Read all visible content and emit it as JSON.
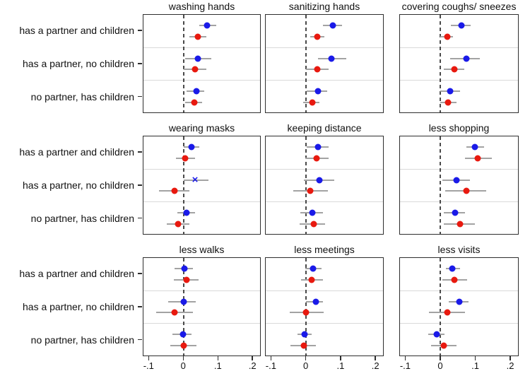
{
  "chart_data": {
    "type": "scatter",
    "layout": "3x3 small-multiple coefficient plot, two series per category with horizontal confidence intervals, dashed reference line at 0, grid off, no legend",
    "categories": [
      "has a partner and children",
      "has a partner, no children",
      "no partner, has children"
    ],
    "x_tick_labels": [
      "-.1",
      "0",
      ".1",
      ".2"
    ],
    "x_tick_values": [
      -0.1,
      0,
      0.1,
      0.2
    ],
    "xlim": [
      -0.117,
      0.224
    ],
    "zero_line": 0,
    "colors": {
      "series_blue": "#1a1ae8",
      "series_red": "#e8190f",
      "whisker": "#a3a3a3",
      "box_border": "#2e2e2e",
      "zero_dash": "#4a4a4a",
      "band_divider": "#d9d9d9"
    },
    "panels": [
      {
        "title": "washing hands",
        "rows": [
          {
            "blue": {
              "est": 0.068,
              "lo": 0.047,
              "hi": 0.095
            },
            "red": {
              "est": 0.042,
              "lo": 0.018,
              "hi": 0.067
            }
          },
          {
            "blue": {
              "est": 0.042,
              "lo": 0.005,
              "hi": 0.081
            },
            "red": {
              "est": 0.033,
              "lo": 0.0,
              "hi": 0.067
            }
          },
          {
            "blue": {
              "est": 0.038,
              "lo": 0.01,
              "hi": 0.061
            },
            "red": {
              "est": 0.032,
              "lo": 0.005,
              "hi": 0.054
            }
          }
        ]
      },
      {
        "title": "sanitizing hands",
        "rows": [
          {
            "blue": {
              "est": 0.078,
              "lo": 0.049,
              "hi": 0.105
            },
            "red": {
              "est": 0.033,
              "lo": 0.012,
              "hi": 0.053
            }
          },
          {
            "blue": {
              "est": 0.075,
              "lo": 0.035,
              "hi": 0.117
            },
            "red": {
              "est": 0.032,
              "lo": 0.0,
              "hi": 0.065
            }
          },
          {
            "blue": {
              "est": 0.035,
              "lo": 0.003,
              "hi": 0.061
            },
            "red": {
              "est": 0.018,
              "lo": -0.009,
              "hi": 0.039
            }
          }
        ]
      },
      {
        "title": "covering coughs/ sneezes",
        "rows": [
          {
            "blue": {
              "est": 0.061,
              "lo": 0.03,
              "hi": 0.088
            },
            "red": {
              "est": 0.019,
              "lo": -0.001,
              "hi": 0.037
            }
          },
          {
            "blue": {
              "est": 0.074,
              "lo": 0.027,
              "hi": 0.113
            },
            "red": {
              "est": 0.04,
              "lo": 0.009,
              "hi": 0.069
            }
          },
          {
            "blue": {
              "est": 0.028,
              "lo": -0.001,
              "hi": 0.057
            },
            "red": {
              "est": 0.022,
              "lo": 0.0,
              "hi": 0.046
            }
          }
        ]
      },
      {
        "title": "wearing masks",
        "rows": [
          {
            "blue": {
              "est": 0.024,
              "lo": 0.001,
              "hi": 0.047
            },
            "red": {
              "est": 0.005,
              "lo": -0.022,
              "hi": 0.034
            }
          },
          {
            "blue": {
              "est": 0.034,
              "lo": 0.001,
              "hi": 0.073,
              "marker": "x"
            },
            "red": {
              "est": -0.027,
              "lo": -0.072,
              "hi": 0.017
            }
          },
          {
            "blue": {
              "est": 0.01,
              "lo": -0.018,
              "hi": 0.034
            },
            "red": {
              "est": -0.016,
              "lo": -0.048,
              "hi": 0.018
            }
          }
        ]
      },
      {
        "title": "keeping distance",
        "rows": [
          {
            "blue": {
              "est": 0.034,
              "lo": 0.003,
              "hi": 0.066
            },
            "red": {
              "est": 0.031,
              "lo": -0.002,
              "hi": 0.066
            }
          },
          {
            "blue": {
              "est": 0.039,
              "lo": -0.007,
              "hi": 0.082
            },
            "red": {
              "est": 0.013,
              "lo": -0.037,
              "hi": 0.063
            }
          },
          {
            "blue": {
              "est": 0.018,
              "lo": -0.017,
              "hi": 0.049
            },
            "red": {
              "est": 0.023,
              "lo": -0.018,
              "hi": 0.055
            }
          }
        ]
      },
      {
        "title": "less shopping",
        "rows": [
          {
            "blue": {
              "est": 0.1,
              "lo": 0.074,
              "hi": 0.126
            },
            "red": {
              "est": 0.108,
              "lo": 0.071,
              "hi": 0.148
            }
          },
          {
            "blue": {
              "est": 0.047,
              "lo": 0.005,
              "hi": 0.086
            },
            "red": {
              "est": 0.074,
              "lo": 0.013,
              "hi": 0.133
            }
          },
          {
            "blue": {
              "est": 0.042,
              "lo": 0.01,
              "hi": 0.071
            },
            "red": {
              "est": 0.056,
              "lo": 0.01,
              "hi": 0.1
            }
          }
        ]
      },
      {
        "title": "less walks",
        "rows": [
          {
            "blue": {
              "est": 0.003,
              "lo": -0.026,
              "hi": 0.027
            },
            "red": {
              "est": 0.01,
              "lo": -0.029,
              "hi": 0.044
            }
          },
          {
            "blue": {
              "est": 0.0,
              "lo": -0.044,
              "hi": 0.036
            },
            "red": {
              "est": -0.026,
              "lo": -0.079,
              "hi": 0.027
            }
          },
          {
            "blue": {
              "est": -0.002,
              "lo": -0.033,
              "hi": 0.023
            },
            "red": {
              "est": 0.0,
              "lo": -0.039,
              "hi": 0.038
            }
          }
        ]
      },
      {
        "title": "less meetings",
        "rows": [
          {
            "blue": {
              "est": 0.021,
              "lo": -0.001,
              "hi": 0.045
            },
            "red": {
              "est": 0.016,
              "lo": -0.015,
              "hi": 0.049
            }
          },
          {
            "blue": {
              "est": 0.028,
              "lo": 0.0,
              "hi": 0.049
            },
            "red": {
              "est": 0.001,
              "lo": -0.047,
              "hi": 0.051
            }
          },
          {
            "blue": {
              "est": -0.004,
              "lo": -0.024,
              "hi": 0.016
            },
            "red": {
              "est": -0.007,
              "lo": -0.045,
              "hi": 0.028
            }
          }
        ]
      },
      {
        "title": "less visits",
        "rows": [
          {
            "blue": {
              "est": 0.035,
              "lo": 0.015,
              "hi": 0.056
            },
            "red": {
              "est": 0.04,
              "lo": 0.005,
              "hi": 0.077
            }
          },
          {
            "blue": {
              "est": 0.054,
              "lo": 0.023,
              "hi": 0.082
            },
            "red": {
              "est": 0.019,
              "lo": -0.034,
              "hi": 0.071
            }
          },
          {
            "blue": {
              "est": -0.01,
              "lo": -0.035,
              "hi": 0.012
            },
            "red": {
              "est": 0.01,
              "lo": -0.028,
              "hi": 0.047
            }
          }
        ]
      }
    ]
  }
}
